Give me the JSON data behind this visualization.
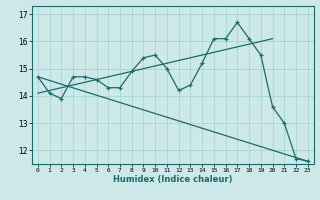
{
  "xlabel": "Humidex (Indice chaleur)",
  "bg_color": "#cce8e8",
  "grid_color": "#aad4d0",
  "line_color": "#1a6b6b",
  "xlim": [
    -0.5,
    23.5
  ],
  "ylim": [
    11.5,
    17.3
  ],
  "yticks": [
    12,
    13,
    14,
    15,
    16,
    17
  ],
  "xticks": [
    0,
    1,
    2,
    3,
    4,
    5,
    6,
    7,
    8,
    9,
    10,
    11,
    12,
    13,
    14,
    15,
    16,
    17,
    18,
    19,
    20,
    21,
    22,
    23
  ],
  "series1_x": [
    0,
    1,
    2,
    3,
    4,
    5,
    6,
    7,
    8,
    9,
    10,
    11,
    12,
    13,
    14,
    15,
    16,
    17,
    18,
    19,
    20,
    21,
    22,
    23
  ],
  "series1_y": [
    14.7,
    14.1,
    13.9,
    14.7,
    14.7,
    14.6,
    14.3,
    14.3,
    14.9,
    15.4,
    15.5,
    15.0,
    14.2,
    14.4,
    15.2,
    16.1,
    16.1,
    16.7,
    16.1,
    15.5,
    13.6,
    13.0,
    11.7,
    11.6
  ],
  "series2_x": [
    0,
    23
  ],
  "series2_y": [
    14.7,
    11.6
  ],
  "series3_x": [
    0,
    20
  ],
  "series3_y": [
    14.1,
    16.1
  ]
}
